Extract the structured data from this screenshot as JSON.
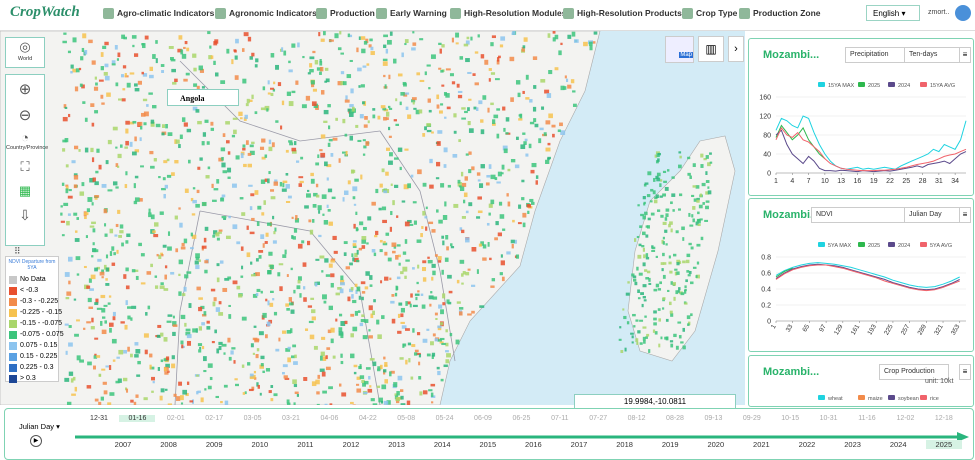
{
  "header": {
    "logo": "CropWatch",
    "nav": [
      "Agro-climatic Indicators",
      "Agronomic Indicators",
      "Production",
      "Early Warning",
      "High-Resolution Modules",
      "High-Resolution Products",
      "Crop Type",
      "Production Zone"
    ],
    "language": "English",
    "user": "zmort.."
  },
  "toolbar": {
    "world": "World",
    "country": "Country/Province",
    "map_button": "Map"
  },
  "map": {
    "label": "Angola",
    "coordinates": "19.9984,-10.0811"
  },
  "legend": {
    "title": "NDVI Departure from 5YA",
    "items": [
      {
        "label": "No Data",
        "color": "#c8c8c8"
      },
      {
        "label": "< -0.3",
        "color": "#e8502e"
      },
      {
        "label": "-0.3 - -0.225",
        "color": "#f28b4a"
      },
      {
        "label": "-0.225 - -0.15",
        "color": "#f6c24f"
      },
      {
        "label": "-0.15 - -0.075",
        "color": "#a9d66b"
      },
      {
        "label": "-0.075 - 0.075",
        "color": "#3cc47c"
      },
      {
        "label": "0.075 - 0.15",
        "color": "#8cc4ef"
      },
      {
        "label": "0.15 - 0.225",
        "color": "#5aa1e3"
      },
      {
        "label": "0.225 - 0.3",
        "color": "#2e6fc4"
      },
      {
        "label": "> 0.3",
        "color": "#1d4796"
      }
    ]
  },
  "panels": [
    {
      "title": "Mozambi...",
      "selects": [
        "Precipitation",
        "Ten-days"
      ],
      "chart_data": {
        "type": "line",
        "x": [
          1,
          2,
          3,
          4,
          5,
          6,
          7,
          8,
          9,
          10,
          11,
          12,
          13,
          14,
          15,
          16,
          17,
          18,
          19,
          20,
          21,
          22,
          23,
          24,
          25,
          26,
          27,
          28,
          29,
          30,
          31,
          32,
          33,
          34,
          35,
          36
        ],
        "xlim": [
          1,
          36
        ],
        "xticks": [
          1,
          4,
          7,
          10,
          13,
          16,
          19,
          22,
          25,
          28,
          31,
          34
        ],
        "ylim": [
          0,
          160
        ],
        "yticks": [
          0,
          40,
          80,
          120,
          160
        ],
        "series": [
          {
            "name": "15YA MAX",
            "color": "#1fd3e0",
            "values": [
              90,
              115,
              110,
              100,
              95,
              120,
              115,
              85,
              60,
              40,
              25,
              15,
              10,
              8,
              10,
              12,
              8,
              10,
              8,
              10,
              12,
              10,
              8,
              15,
              20,
              25,
              30,
              35,
              40,
              50,
              45,
              60,
              55,
              50,
              70,
              110
            ]
          },
          {
            "name": "2025",
            "color": "#2db84d",
            "values": [
              75,
              100,
              85,
              70,
              80,
              95,
              70,
              55,
              40,
              30,
              null,
              null,
              null,
              null,
              null,
              null,
              null,
              null,
              null,
              null,
              null,
              null,
              null,
              null,
              null,
              null,
              null,
              null,
              null,
              null,
              null,
              null,
              null,
              null,
              null,
              null
            ]
          },
          {
            "name": "2024",
            "color": "#5b4a8b",
            "values": [
              80,
              90,
              60,
              40,
              30,
              20,
              35,
              25,
              10,
              5,
              5,
              4,
              6,
              5,
              4,
              3,
              5,
              4,
              3,
              4,
              5,
              4,
              6,
              8,
              10,
              12,
              15,
              12,
              18,
              20,
              22,
              25,
              20,
              30,
              40,
              45
            ]
          },
          {
            "name": "15YA AVG",
            "color": "#f0636b",
            "values": [
              70,
              95,
              80,
              75,
              85,
              70,
              65,
              55,
              45,
              30,
              20,
              15,
              10,
              8,
              7,
              6,
              5,
              5,
              5,
              6,
              6,
              7,
              8,
              10,
              12,
              15,
              18,
              20,
              22,
              25,
              30,
              35,
              38,
              40,
              45,
              50
            ]
          }
        ]
      }
    },
    {
      "title": "Mozambi...",
      "selects": [
        "NDVI",
        "Julian Day"
      ],
      "chart_data": {
        "type": "line",
        "x": [
          1,
          17,
          33,
          49,
          65,
          81,
          97,
          113,
          129,
          145,
          161,
          177,
          193,
          209,
          225,
          241,
          257,
          273,
          289,
          305,
          321,
          337,
          353
        ],
        "xlim": [
          1,
          365
        ],
        "xticks": [
          1,
          33,
          65,
          97,
          129,
          161,
          193,
          225,
          257,
          289,
          321,
          353
        ],
        "ylim": [
          0,
          0.8
        ],
        "yticks": [
          0,
          0.2,
          0.4,
          0.6,
          0.8
        ],
        "series": [
          {
            "name": "5YA MAX",
            "color": "#1fd3e0",
            "values": [
              0.57,
              0.63,
              0.67,
              0.7,
              0.72,
              0.73,
              0.72,
              0.71,
              0.69,
              0.67,
              0.64,
              0.61,
              0.58,
              0.55,
              0.51,
              0.48,
              0.45,
              0.43,
              0.42,
              0.43,
              0.46,
              0.5,
              0.55
            ]
          },
          {
            "name": "2025",
            "color": "#2db84d",
            "values": [
              0.55,
              0.62,
              0.66,
              null,
              null,
              null,
              null,
              null,
              null,
              null,
              null,
              null,
              null,
              null,
              null,
              null,
              null,
              null,
              null,
              null,
              null,
              null,
              null
            ]
          },
          {
            "name": "2024",
            "color": "#5b4a8b",
            "values": [
              0.53,
              0.6,
              0.65,
              0.68,
              0.7,
              0.71,
              0.7,
              0.69,
              0.67,
              0.64,
              0.61,
              0.58,
              0.55,
              0.52,
              0.48,
              0.45,
              0.42,
              0.4,
              0.39,
              0.4,
              0.43,
              0.47,
              0.52
            ]
          },
          {
            "name": "5YA AVG",
            "color": "#f0636b",
            "values": [
              0.52,
              0.59,
              0.64,
              0.67,
              0.69,
              0.7,
              0.7,
              0.68,
              0.66,
              0.63,
              0.6,
              0.57,
              0.54,
              0.5,
              0.47,
              0.44,
              0.41,
              0.39,
              0.38,
              0.39,
              0.42,
              0.46,
              0.5
            ]
          }
        ]
      }
    },
    {
      "title": "Mozambi...",
      "selects": [
        "Crop Production"
      ],
      "unit": "unit: 10kt",
      "legend": [
        {
          "name": "wheat",
          "color": "#1fd3e0"
        },
        {
          "name": "maize",
          "color": "#f28b4a"
        },
        {
          "name": "soybean",
          "color": "#5b4a8b"
        },
        {
          "name": "rice",
          "color": "#f0636b"
        }
      ]
    }
  ],
  "timeline": {
    "mode": "Julian Day",
    "dates": [
      "12-31",
      "01-16",
      "02-01",
      "02-17",
      "03-05",
      "03-21",
      "04-06",
      "04-22",
      "05-08",
      "05-24",
      "06-09",
      "06-25",
      "07-11",
      "07-27",
      "08-12",
      "08-28",
      "09-13",
      "09-29",
      "10-15",
      "10-31",
      "11-16",
      "12-02",
      "12-18"
    ],
    "selected_date": 1,
    "years": [
      "2007",
      "2008",
      "2009",
      "2010",
      "2011",
      "2012",
      "2013",
      "2014",
      "2015",
      "2016",
      "2017",
      "2018",
      "2019",
      "2020",
      "2021",
      "2022",
      "2023",
      "2024",
      "2025"
    ],
    "selected_year": 18
  }
}
